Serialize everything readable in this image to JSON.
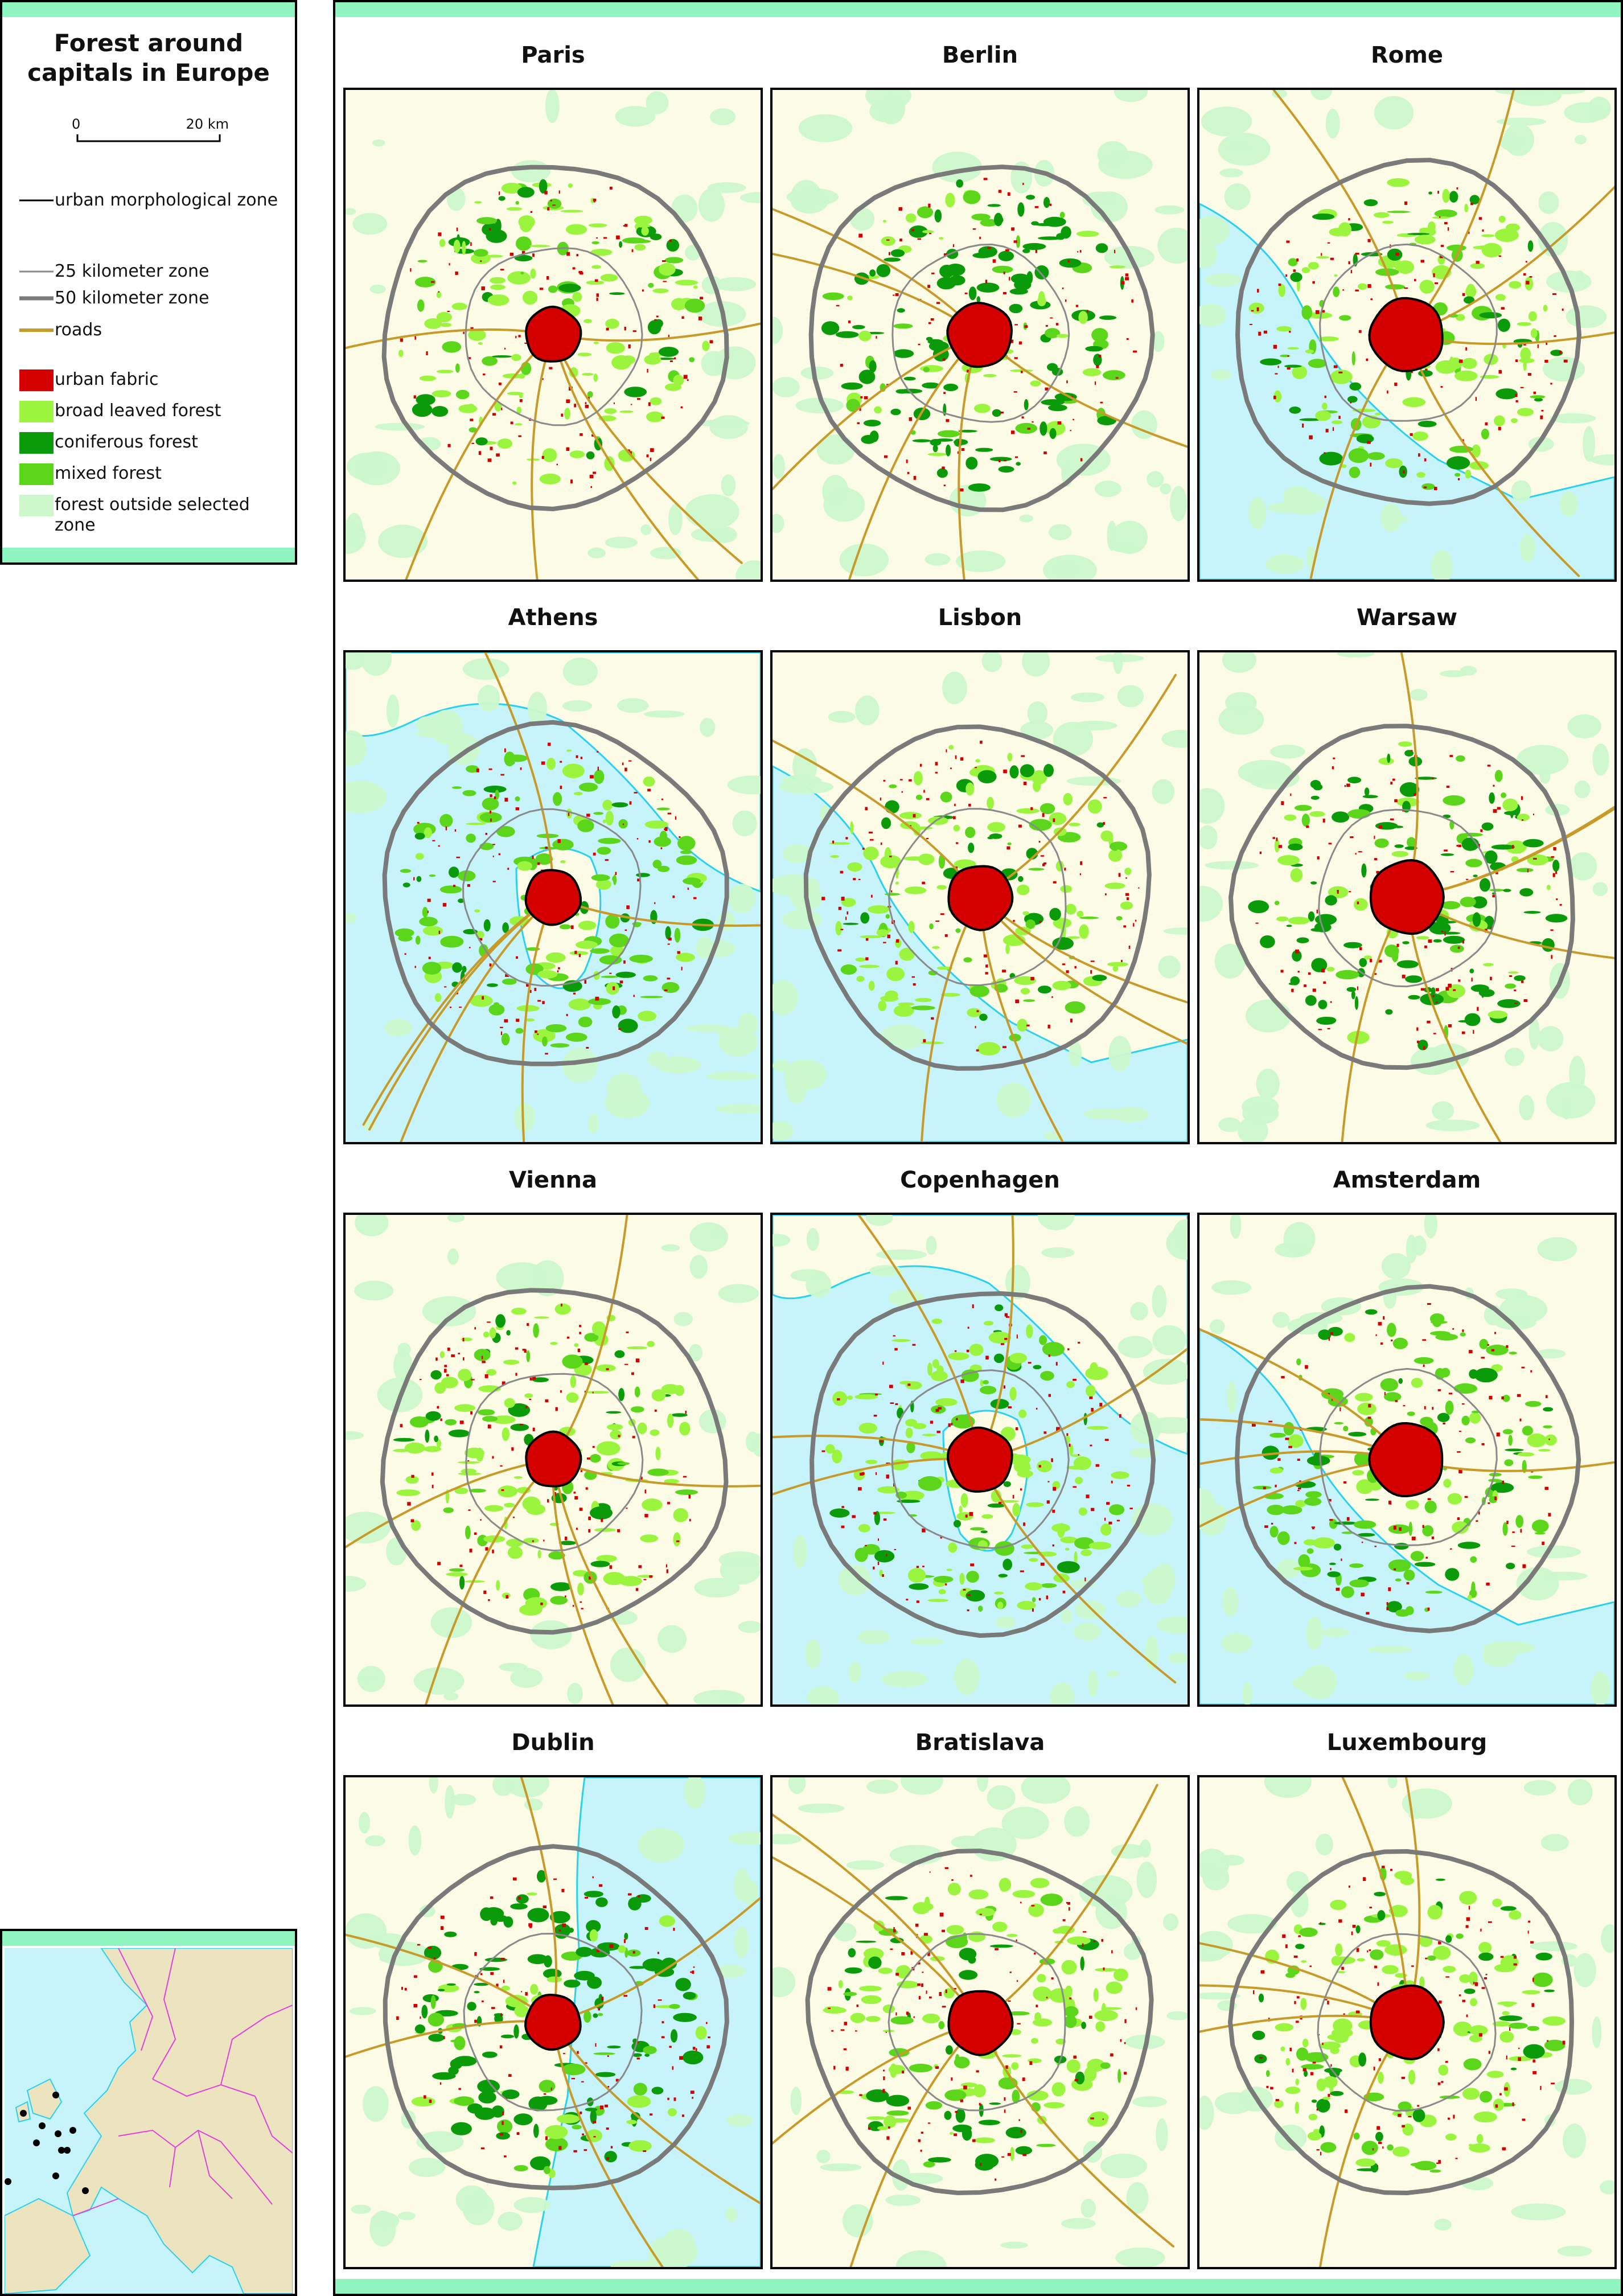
{
  "legend": {
    "title_line1": "Forest around",
    "title_line2": "capitals in Europe",
    "scale": {
      "start": "0",
      "end": "20 km"
    },
    "items": [
      {
        "label": "urban morphological zone",
        "symbol": "line",
        "color": "#000000"
      },
      {
        "label": "25 kilometer zone",
        "symbol": "line",
        "color": "#8a8a8a"
      },
      {
        "label": "50 kilometer zone",
        "symbol": "line",
        "color": "#7a7a7a"
      },
      {
        "label": "roads",
        "symbol": "line",
        "color": "#c89a2a"
      },
      {
        "label": "urban fabric",
        "symbol": "swatch",
        "color": "#d40000"
      },
      {
        "label": "broad leaved forest",
        "symbol": "swatch",
        "color": "#9bf53f"
      },
      {
        "label": "coniferous forest",
        "symbol": "swatch",
        "color": "#0a9a0a"
      },
      {
        "label": "mixed forest",
        "symbol": "swatch",
        "color": "#5cd61a"
      },
      {
        "label": "forest outside selected zone",
        "symbol": "swatch",
        "color": "#ccf8cc"
      }
    ]
  },
  "maps": [
    {
      "name": "Paris",
      "water": "none",
      "dominant": "broad"
    },
    {
      "name": "Berlin",
      "water": "none",
      "dominant": "coniferous"
    },
    {
      "name": "Rome",
      "water": "sea-left",
      "dominant": "broad"
    },
    {
      "name": "Athens",
      "water": "sea-mostly",
      "dominant": "mixed"
    },
    {
      "name": "Lisbon",
      "water": "sea-left",
      "dominant": "broad"
    },
    {
      "name": "Warsaw",
      "water": "none",
      "dominant": "coniferous"
    },
    {
      "name": "Vienna",
      "water": "none",
      "dominant": "broad"
    },
    {
      "name": "Copenhagen",
      "water": "sea-mostly",
      "dominant": "broad"
    },
    {
      "name": "Amsterdam",
      "water": "sea-left",
      "dominant": "mixed"
    },
    {
      "name": "Dublin",
      "water": "sea-right",
      "dominant": "coniferous"
    },
    {
      "name": "Bratislava",
      "water": "none",
      "dominant": "broad"
    },
    {
      "name": "Luxembourg",
      "water": "none",
      "dominant": "broad"
    }
  ],
  "colors": {
    "land": "#fcfce6",
    "sea": "#c6f4fa",
    "coast": "#2ad0f0",
    "road": "#c89a2a",
    "urban": "#d40000",
    "broad": "#9bf53f",
    "coniferous": "#0a9a0a",
    "mixed": "#5cd61a",
    "outside": "#ccf8cc",
    "accent_bar": "#8ef5c0",
    "locator_land": "#ece3bf",
    "locator_border": "#e040e0"
  }
}
